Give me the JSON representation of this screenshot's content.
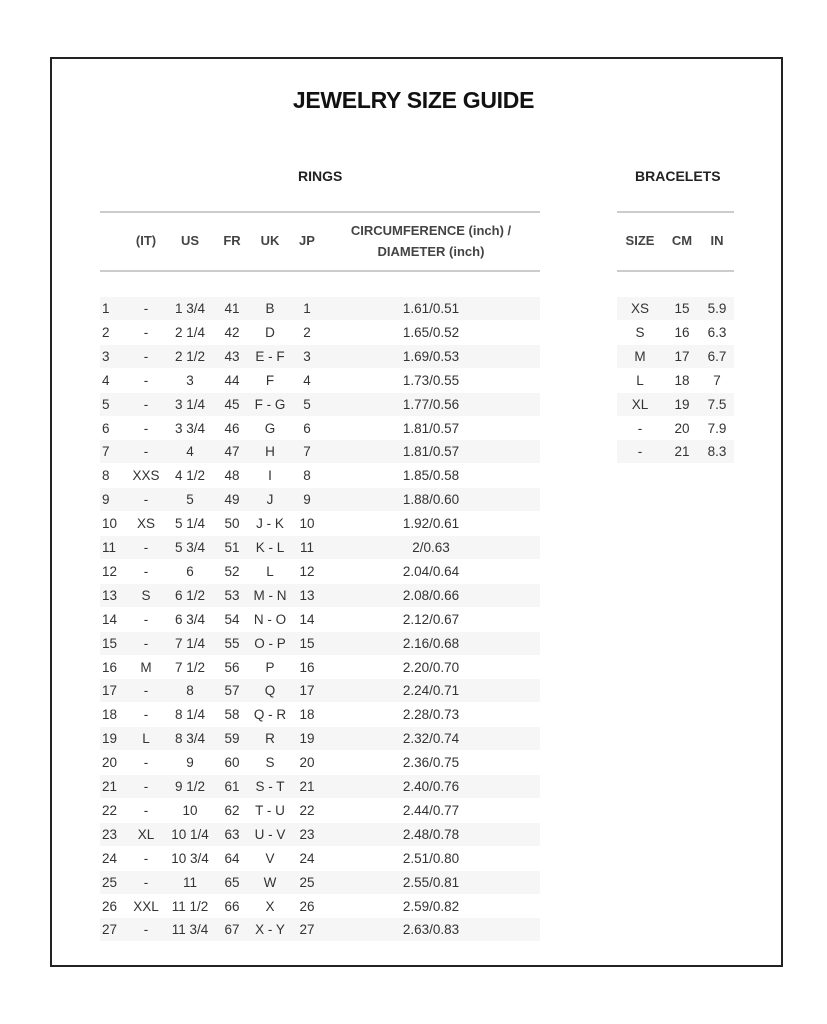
{
  "title": "JEWELRY SIZE GUIDE",
  "rings": {
    "heading": "RINGS",
    "columns": [
      "",
      "(IT)",
      "US",
      "FR",
      "UK",
      "JP",
      "CIRCUMFERENCE (inch) /",
      "DIAMETER (inch)"
    ],
    "rows": [
      [
        "1",
        "-",
        "1 3/4",
        "41",
        "B",
        "1",
        "1.61/0.51"
      ],
      [
        "2",
        "-",
        "2 1/4",
        "42",
        "D",
        "2",
        "1.65/0.52"
      ],
      [
        "3",
        "-",
        "2 1/2",
        "43",
        "E - F",
        "3",
        "1.69/0.53"
      ],
      [
        "4",
        "-",
        "3",
        "44",
        "F",
        "4",
        "1.73/0.55"
      ],
      [
        "5",
        "-",
        "3 1/4",
        "45",
        "F - G",
        "5",
        "1.77/0.56"
      ],
      [
        "6",
        "-",
        "3 3/4",
        "46",
        "G",
        "6",
        "1.81/0.57"
      ],
      [
        "7",
        "-",
        "4",
        "47",
        "H",
        "7",
        "1.81/0.57"
      ],
      [
        "8",
        "XXS",
        "4 1/2",
        "48",
        "I",
        "8",
        "1.85/0.58"
      ],
      [
        "9",
        "-",
        "5",
        "49",
        "J",
        "9",
        "1.88/0.60"
      ],
      [
        "10",
        "XS",
        "5 1/4",
        "50",
        "J - K",
        "10",
        "1.92/0.61"
      ],
      [
        "11",
        "-",
        "5 3/4",
        "51",
        "K - L",
        "11",
        "2/0.63"
      ],
      [
        "12",
        "-",
        "6",
        "52",
        "L",
        "12",
        "2.04/0.64"
      ],
      [
        "13",
        "S",
        "6 1/2",
        "53",
        "M - N",
        "13",
        "2.08/0.66"
      ],
      [
        "14",
        "-",
        "6 3/4",
        "54",
        "N - O",
        "14",
        "2.12/0.67"
      ],
      [
        "15",
        "-",
        "7 1/4",
        "55",
        "O - P",
        "15",
        "2.16/0.68"
      ],
      [
        "16",
        "M",
        "7 1/2",
        "56",
        "P",
        "16",
        "2.20/0.70"
      ],
      [
        "17",
        "-",
        "8",
        "57",
        "Q",
        "17",
        "2.24/0.71"
      ],
      [
        "18",
        "-",
        "8 1/4",
        "58",
        "Q - R",
        "18",
        "2.28/0.73"
      ],
      [
        "19",
        "L",
        "8 3/4",
        "59",
        "R",
        "19",
        "2.32/0.74"
      ],
      [
        "20",
        "-",
        "9",
        "60",
        "S",
        "20",
        "2.36/0.75"
      ],
      [
        "21",
        "-",
        "9 1/2",
        "61",
        "S - T",
        "21",
        "2.40/0.76"
      ],
      [
        "22",
        "-",
        "10",
        "62",
        "T - U",
        "22",
        "2.44/0.77"
      ],
      [
        "23",
        "XL",
        "10 1/4",
        "63",
        "U - V",
        "23",
        "2.48/0.78"
      ],
      [
        "24",
        "-",
        "10 3/4",
        "64",
        "V",
        "24",
        "2.51/0.80"
      ],
      [
        "25",
        "-",
        "11",
        "65",
        "W",
        "25",
        "2.55/0.81"
      ],
      [
        "26",
        "XXL",
        "11 1/2",
        "66",
        "X",
        "26",
        "2.59/0.82"
      ],
      [
        "27",
        "-",
        "11 3/4",
        "67",
        "X - Y",
        "27",
        "2.63/0.83"
      ]
    ]
  },
  "bracelets": {
    "heading": "BRACELETS",
    "columns": [
      "SIZE",
      "CM",
      "IN"
    ],
    "rows": [
      [
        "XS",
        "15",
        "5.9"
      ],
      [
        "S",
        "16",
        "6.3"
      ],
      [
        "M",
        "17",
        "6.7"
      ],
      [
        "L",
        "18",
        "7"
      ],
      [
        "XL",
        "19",
        "7.5"
      ],
      [
        "-",
        "20",
        "7.9"
      ],
      [
        "-",
        "21",
        "8.3"
      ]
    ]
  },
  "colors": {
    "row_shade": "#f6f6f6",
    "rule": "#cccccc",
    "frame": "#222222"
  }
}
